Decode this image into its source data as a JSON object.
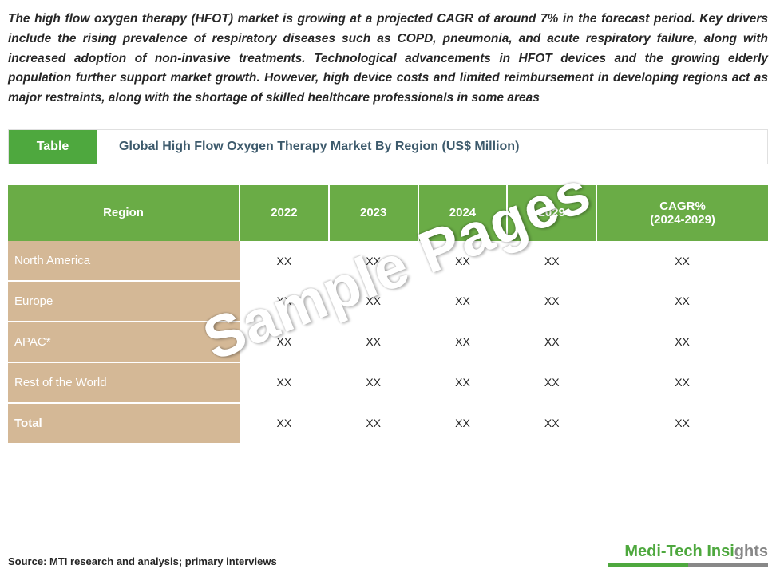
{
  "intro": "The high flow oxygen therapy (HFOT) market is growing at a projected CAGR of around 7% in the forecast period. Key drivers include the rising prevalence of respiratory diseases such as COPD, pneumonia, and acute respiratory failure, along with increased adoption of non-invasive treatments. Technological advancements in HFOT devices and the growing elderly population further support market growth. However, high device costs and limited reimbursement in developing regions act as major restraints, along with the shortage of skilled healthcare professionals in some areas",
  "table_badge": "Table",
  "table_title": "Global High Flow Oxygen Therapy Market By Region (US$ Million)",
  "columns": [
    "Region",
    "2022",
    "2023",
    "2024",
    "2029",
    "CAGR%\n(2024-2029)"
  ],
  "rows": [
    [
      "North America",
      "XX",
      "XX",
      "XX",
      "XX",
      "XX"
    ],
    [
      "Europe",
      "XX",
      "XX",
      "XX",
      "XX",
      "XX"
    ],
    [
      "APAC*",
      "XX",
      "XX",
      "XX",
      "XX",
      "XX"
    ],
    [
      "Rest of the World",
      "XX",
      "XX",
      "XX",
      "XX",
      "XX"
    ],
    [
      "Total",
      "XX",
      "XX",
      "XX",
      "XX",
      "XX"
    ]
  ],
  "watermark": "Sample Pages",
  "source": "Source: MTI research and analysis; primary interviews",
  "brand_green": "Medi-Tech Insi",
  "brand_grey": "ghts",
  "colors": {
    "header_bg": "#6aac46",
    "badge_bg": "#4ea83e",
    "row_label_bg": "#d4b896",
    "title_color": "#3d5a6c"
  }
}
